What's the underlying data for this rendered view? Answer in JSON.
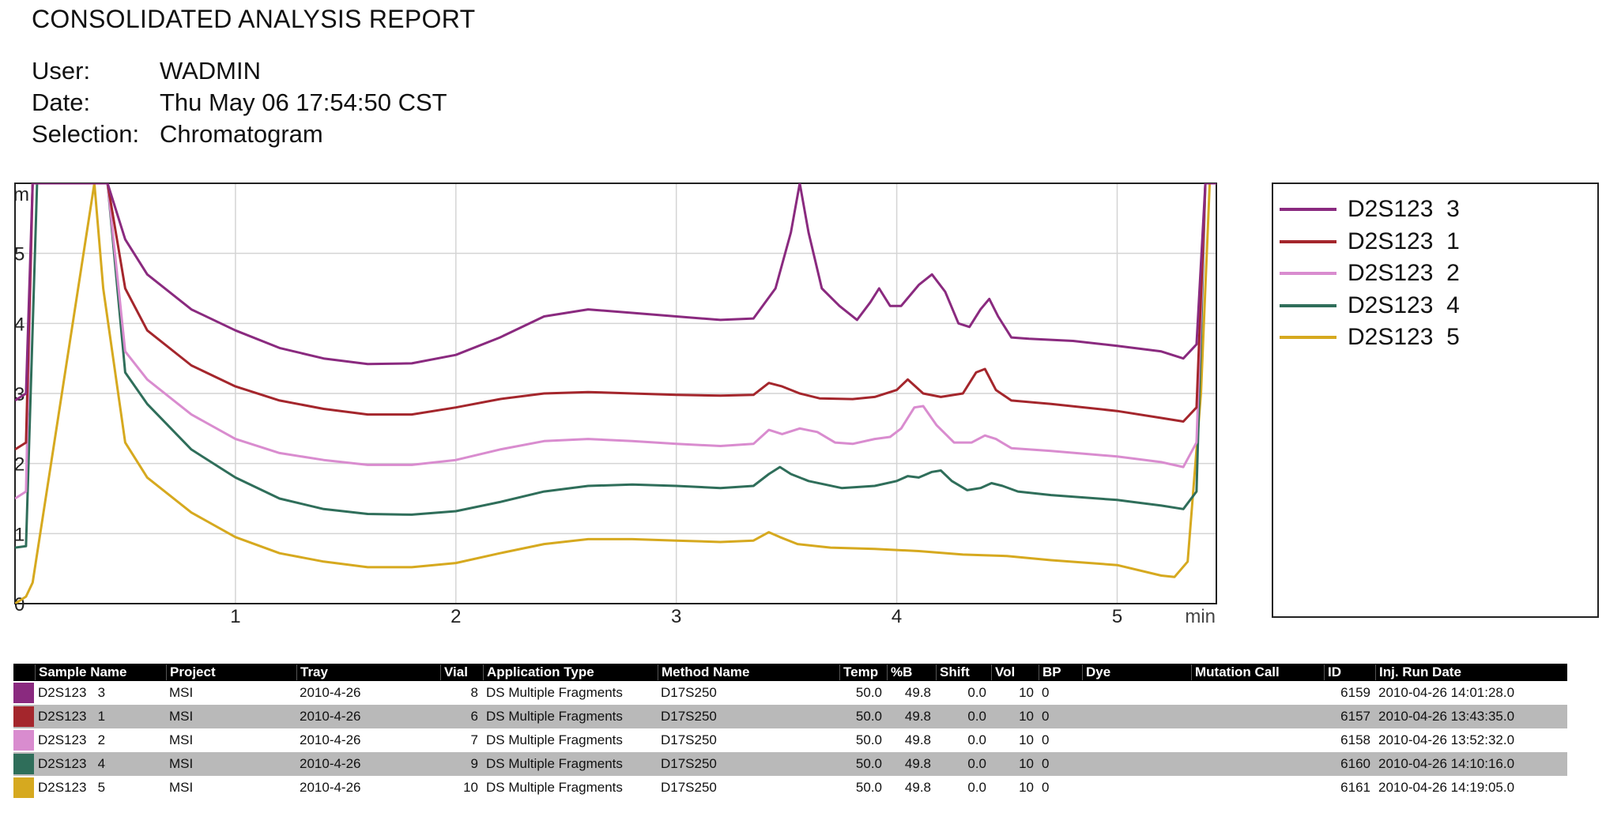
{
  "report": {
    "title": "CONSOLIDATED ANALYSIS REPORT",
    "user_label": "User:",
    "user_value": "WADMIN",
    "date_label": "Date:",
    "date_value": "Thu May 06 17:54:50 CST",
    "selection_label": "Selection:",
    "selection_value": "Chromatogram"
  },
  "chart_data": {
    "type": "line",
    "title": "",
    "xlabel": "min",
    "ylabel": "m",
    "xlim": [
      0.0,
      5.45
    ],
    "ylim": [
      0,
      6.0
    ],
    "x_ticks": [
      1,
      2,
      3,
      4,
      5
    ],
    "y_ticks": [
      0,
      1,
      2,
      3,
      4,
      5
    ],
    "grid": true,
    "legend_position": "right",
    "series": [
      {
        "name": "D2S123  3",
        "color": "#8a2a7f",
        "points": [
          [
            0.0,
            2.9
          ],
          [
            0.05,
            3.0
          ],
          [
            0.08,
            6.0
          ],
          [
            0.36,
            6.0
          ],
          [
            0.42,
            6.0
          ],
          [
            0.5,
            5.2
          ],
          [
            0.6,
            4.7
          ],
          [
            0.8,
            4.2
          ],
          [
            1.0,
            3.9
          ],
          [
            1.2,
            3.65
          ],
          [
            1.4,
            3.5
          ],
          [
            1.6,
            3.42
          ],
          [
            1.8,
            3.43
          ],
          [
            2.0,
            3.55
          ],
          [
            2.2,
            3.8
          ],
          [
            2.4,
            4.1
          ],
          [
            2.6,
            4.2
          ],
          [
            2.8,
            4.15
          ],
          [
            3.0,
            4.1
          ],
          [
            3.2,
            4.05
          ],
          [
            3.35,
            4.07
          ],
          [
            3.45,
            4.5
          ],
          [
            3.52,
            5.3
          ],
          [
            3.56,
            6.0
          ],
          [
            3.6,
            5.3
          ],
          [
            3.66,
            4.5
          ],
          [
            3.74,
            4.25
          ],
          [
            3.82,
            4.05
          ],
          [
            3.88,
            4.3
          ],
          [
            3.92,
            4.5
          ],
          [
            3.97,
            4.25
          ],
          [
            4.02,
            4.25
          ],
          [
            4.1,
            4.55
          ],
          [
            4.16,
            4.7
          ],
          [
            4.22,
            4.45
          ],
          [
            4.28,
            4.0
          ],
          [
            4.33,
            3.95
          ],
          [
            4.38,
            4.2
          ],
          [
            4.42,
            4.35
          ],
          [
            4.46,
            4.1
          ],
          [
            4.52,
            3.8
          ],
          [
            4.6,
            3.78
          ],
          [
            4.8,
            3.75
          ],
          [
            5.0,
            3.68
          ],
          [
            5.2,
            3.6
          ],
          [
            5.3,
            3.5
          ],
          [
            5.36,
            3.7
          ],
          [
            5.4,
            6.0
          ],
          [
            5.45,
            6.0
          ]
        ]
      },
      {
        "name": "D2S123  1",
        "color": "#a4262c",
        "points": [
          [
            0.0,
            2.2
          ],
          [
            0.05,
            2.3
          ],
          [
            0.08,
            6.0
          ],
          [
            0.36,
            6.0
          ],
          [
            0.42,
            6.0
          ],
          [
            0.5,
            4.5
          ],
          [
            0.6,
            3.9
          ],
          [
            0.8,
            3.4
          ],
          [
            1.0,
            3.1
          ],
          [
            1.2,
            2.9
          ],
          [
            1.4,
            2.78
          ],
          [
            1.6,
            2.7
          ],
          [
            1.8,
            2.7
          ],
          [
            2.0,
            2.8
          ],
          [
            2.2,
            2.92
          ],
          [
            2.4,
            3.0
          ],
          [
            2.6,
            3.02
          ],
          [
            2.8,
            3.0
          ],
          [
            3.0,
            2.98
          ],
          [
            3.2,
            2.97
          ],
          [
            3.35,
            2.98
          ],
          [
            3.42,
            3.15
          ],
          [
            3.48,
            3.1
          ],
          [
            3.56,
            3.0
          ],
          [
            3.65,
            2.93
          ],
          [
            3.8,
            2.92
          ],
          [
            3.9,
            2.95
          ],
          [
            4.0,
            3.05
          ],
          [
            4.05,
            3.2
          ],
          [
            4.12,
            3.0
          ],
          [
            4.2,
            2.95
          ],
          [
            4.3,
            3.0
          ],
          [
            4.36,
            3.3
          ],
          [
            4.4,
            3.35
          ],
          [
            4.45,
            3.05
          ],
          [
            4.52,
            2.9
          ],
          [
            4.7,
            2.85
          ],
          [
            5.0,
            2.75
          ],
          [
            5.2,
            2.65
          ],
          [
            5.3,
            2.6
          ],
          [
            5.36,
            2.8
          ],
          [
            5.4,
            6.0
          ],
          [
            5.45,
            6.0
          ]
        ]
      },
      {
        "name": "D2S123  2",
        "color": "#d98ccf",
        "points": [
          [
            0.0,
            1.5
          ],
          [
            0.05,
            1.6
          ],
          [
            0.08,
            6.0
          ],
          [
            0.36,
            6.0
          ],
          [
            0.42,
            6.0
          ],
          [
            0.5,
            3.6
          ],
          [
            0.6,
            3.2
          ],
          [
            0.8,
            2.7
          ],
          [
            1.0,
            2.35
          ],
          [
            1.2,
            2.15
          ],
          [
            1.4,
            2.05
          ],
          [
            1.6,
            1.98
          ],
          [
            1.8,
            1.98
          ],
          [
            2.0,
            2.05
          ],
          [
            2.2,
            2.2
          ],
          [
            2.4,
            2.32
          ],
          [
            2.6,
            2.35
          ],
          [
            2.8,
            2.32
          ],
          [
            3.0,
            2.28
          ],
          [
            3.2,
            2.25
          ],
          [
            3.35,
            2.28
          ],
          [
            3.42,
            2.48
          ],
          [
            3.48,
            2.42
          ],
          [
            3.56,
            2.5
          ],
          [
            3.64,
            2.45
          ],
          [
            3.72,
            2.3
          ],
          [
            3.8,
            2.28
          ],
          [
            3.9,
            2.35
          ],
          [
            3.97,
            2.38
          ],
          [
            4.02,
            2.5
          ],
          [
            4.08,
            2.8
          ],
          [
            4.12,
            2.82
          ],
          [
            4.18,
            2.55
          ],
          [
            4.26,
            2.3
          ],
          [
            4.34,
            2.3
          ],
          [
            4.4,
            2.4
          ],
          [
            4.45,
            2.35
          ],
          [
            4.52,
            2.22
          ],
          [
            4.7,
            2.18
          ],
          [
            5.0,
            2.1
          ],
          [
            5.2,
            2.02
          ],
          [
            5.3,
            1.95
          ],
          [
            5.36,
            2.3
          ],
          [
            5.4,
            6.0
          ],
          [
            5.45,
            6.0
          ]
        ]
      },
      {
        "name": "D2S123  4",
        "color": "#2f6e5a",
        "points": [
          [
            0.0,
            0.8
          ],
          [
            0.05,
            0.82
          ],
          [
            0.1,
            6.0
          ],
          [
            0.36,
            6.0
          ],
          [
            0.42,
            6.0
          ],
          [
            0.5,
            3.3
          ],
          [
            0.6,
            2.85
          ],
          [
            0.8,
            2.2
          ],
          [
            1.0,
            1.8
          ],
          [
            1.2,
            1.5
          ],
          [
            1.4,
            1.35
          ],
          [
            1.6,
            1.28
          ],
          [
            1.8,
            1.27
          ],
          [
            2.0,
            1.32
          ],
          [
            2.2,
            1.45
          ],
          [
            2.4,
            1.6
          ],
          [
            2.6,
            1.68
          ],
          [
            2.8,
            1.7
          ],
          [
            3.0,
            1.68
          ],
          [
            3.2,
            1.65
          ],
          [
            3.35,
            1.68
          ],
          [
            3.42,
            1.85
          ],
          [
            3.47,
            1.95
          ],
          [
            3.52,
            1.85
          ],
          [
            3.6,
            1.75
          ],
          [
            3.75,
            1.65
          ],
          [
            3.9,
            1.68
          ],
          [
            4.0,
            1.75
          ],
          [
            4.05,
            1.82
          ],
          [
            4.1,
            1.8
          ],
          [
            4.16,
            1.88
          ],
          [
            4.2,
            1.9
          ],
          [
            4.25,
            1.75
          ],
          [
            4.32,
            1.62
          ],
          [
            4.38,
            1.65
          ],
          [
            4.43,
            1.72
          ],
          [
            4.48,
            1.68
          ],
          [
            4.55,
            1.6
          ],
          [
            4.7,
            1.55
          ],
          [
            5.0,
            1.48
          ],
          [
            5.2,
            1.4
          ],
          [
            5.3,
            1.35
          ],
          [
            5.36,
            1.6
          ],
          [
            5.4,
            6.0
          ],
          [
            5.45,
            6.0
          ]
        ]
      },
      {
        "name": "D2S123  5",
        "color": "#d6a91f",
        "points": [
          [
            0.0,
            0.0
          ],
          [
            0.05,
            0.1
          ],
          [
            0.08,
            0.3
          ],
          [
            0.36,
            6.0
          ],
          [
            0.4,
            4.5
          ],
          [
            0.5,
            2.3
          ],
          [
            0.6,
            1.8
          ],
          [
            0.8,
            1.3
          ],
          [
            1.0,
            0.95
          ],
          [
            1.2,
            0.72
          ],
          [
            1.4,
            0.6
          ],
          [
            1.6,
            0.52
          ],
          [
            1.8,
            0.52
          ],
          [
            2.0,
            0.58
          ],
          [
            2.2,
            0.72
          ],
          [
            2.4,
            0.85
          ],
          [
            2.6,
            0.92
          ],
          [
            2.8,
            0.92
          ],
          [
            3.0,
            0.9
          ],
          [
            3.2,
            0.88
          ],
          [
            3.35,
            0.9
          ],
          [
            3.42,
            1.02
          ],
          [
            3.47,
            0.95
          ],
          [
            3.55,
            0.85
          ],
          [
            3.7,
            0.8
          ],
          [
            3.9,
            0.78
          ],
          [
            4.1,
            0.75
          ],
          [
            4.3,
            0.7
          ],
          [
            4.5,
            0.68
          ],
          [
            4.7,
            0.62
          ],
          [
            5.0,
            0.55
          ],
          [
            5.2,
            0.4
          ],
          [
            5.26,
            0.38
          ],
          [
            5.32,
            0.6
          ],
          [
            5.38,
            3.0
          ],
          [
            5.42,
            6.0
          ],
          [
            5.45,
            6.0
          ]
        ]
      }
    ]
  },
  "table": {
    "headers": [
      "Sample Name",
      "Project",
      "Tray",
      "Vial",
      "Application Type",
      "Method Name",
      "Temp",
      "%B",
      "Shift",
      "Vol",
      "BP",
      "Dye",
      "Mutation Call",
      "ID",
      "Inj. Run Date"
    ],
    "rows": [
      {
        "color": "#8a2a7f",
        "cells": [
          "D2S123   3",
          "MSI",
          "2010-4-26",
          "8",
          "DS Multiple Fragments",
          "D17S250",
          "50.0",
          "49.8",
          "0.0",
          "10",
          "0",
          "",
          "",
          "6159",
          "2010-04-26 14:01:28.0"
        ]
      },
      {
        "color": "#a4262c",
        "cells": [
          "D2S123   1",
          "MSI",
          "2010-4-26",
          "6",
          "DS Multiple Fragments",
          "D17S250",
          "50.0",
          "49.8",
          "0.0",
          "10",
          "0",
          "",
          "",
          "6157",
          "2010-04-26 13:43:35.0"
        ]
      },
      {
        "color": "#d98ccf",
        "cells": [
          "D2S123   2",
          "MSI",
          "2010-4-26",
          "7",
          "DS Multiple Fragments",
          "D17S250",
          "50.0",
          "49.8",
          "0.0",
          "10",
          "0",
          "",
          "",
          "6158",
          "2010-04-26 13:52:32.0"
        ]
      },
      {
        "color": "#2f6e5a",
        "cells": [
          "D2S123   4",
          "MSI",
          "2010-4-26",
          "9",
          "DS Multiple Fragments",
          "D17S250",
          "50.0",
          "49.8",
          "0.0",
          "10",
          "0",
          "",
          "",
          "6160",
          "2010-04-26 14:10:16.0"
        ]
      },
      {
        "color": "#d6a91f",
        "cells": [
          "D2S123   5",
          "MSI",
          "2010-4-26",
          "10",
          "DS Multiple Fragments",
          "D17S250",
          "50.0",
          "49.8",
          "0.0",
          "10",
          "0",
          "",
          "",
          "6161",
          "2010-04-26 14:19:05.0"
        ]
      }
    ]
  }
}
